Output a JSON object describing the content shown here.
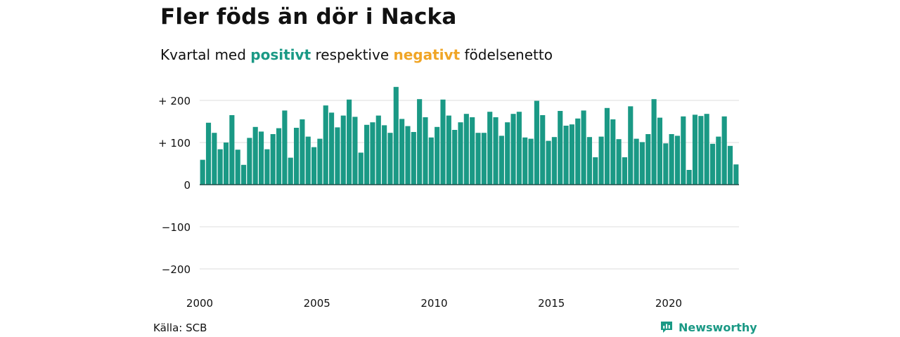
{
  "title": "Fler föds än dör i Nacka",
  "subtitle": {
    "prefix": "Kvartal med",
    "positive": "positivt",
    "middle": "respektive",
    "negative": "negativt",
    "suffix": "födelsenetto"
  },
  "source": "Källa: SCB",
  "brand": {
    "name": "Newsworthy",
    "icon": "newsworthy-logo-icon"
  },
  "colors": {
    "positive": "#1a9985",
    "negative": "#f0a526",
    "grid": "#dcdcdc",
    "axis": "#1f4f48"
  },
  "chart_data": {
    "type": "bar",
    "x_start": 2000.0,
    "x_step": 0.25,
    "values": [
      59,
      147,
      123,
      84,
      100,
      165,
      83,
      47,
      111,
      137,
      126,
      84,
      120,
      134,
      176,
      64,
      135,
      155,
      114,
      89,
      109,
      188,
      171,
      136,
      164,
      202,
      161,
      76,
      142,
      148,
      164,
      141,
      123,
      232,
      156,
      139,
      125,
      203,
      160,
      112,
      137,
      202,
      164,
      130,
      148,
      168,
      160,
      123,
      123,
      173,
      160,
      116,
      148,
      168,
      173,
      112,
      109,
      199,
      165,
      104,
      113,
      175,
      140,
      143,
      157,
      176,
      113,
      65,
      114,
      182,
      155,
      108,
      65,
      186,
      109,
      101,
      120,
      203,
      159,
      98,
      120,
      116,
      162,
      35,
      166,
      163,
      168,
      97,
      114,
      162,
      92,
      48
    ],
    "ylim": [
      -230,
      230
    ],
    "yticks": [
      200,
      100,
      0,
      -100,
      -200
    ],
    "ytick_labels": [
      "+ 200",
      "+ 100",
      "0",
      "−100",
      "−200"
    ],
    "xticks": [
      2000,
      2005,
      2010,
      2015,
      2020
    ],
    "xtick_labels": [
      "2000",
      "2005",
      "2010",
      "2015",
      "2020"
    ],
    "grid": true,
    "legend": "none"
  }
}
